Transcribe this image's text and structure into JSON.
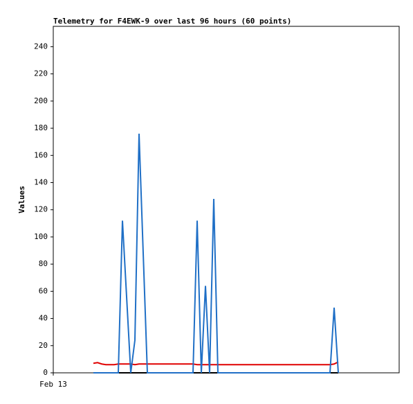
{
  "chart_data": {
    "type": "line",
    "title": "Telemetry for F4EWK-9 over last 96 hours (60 points)",
    "y_label": "Values",
    "x": [
      11.6,
      12.8,
      14,
      15.2,
      16.4,
      17.6,
      18.8,
      20,
      21.2,
      22.4,
      23.6,
      24.8,
      26,
      27.2,
      28.4,
      29.6,
      30.8,
      32,
      33.2,
      34.4,
      35.6,
      36.8,
      38,
      39.2,
      40.4,
      41.6,
      42.8,
      44,
      45.2,
      46.4,
      47.6,
      48.8,
      50,
      51.2,
      52.4,
      53.6,
      54.8,
      56,
      57.2,
      58.4,
      59.6,
      60.8,
      62,
      63.2,
      64.4,
      65.6,
      66.8,
      68,
      69.2,
      70.4,
      71.6,
      72.8,
      74,
      75.2,
      76.4,
      77.6,
      78.8,
      80,
      81.2,
      82.4
    ],
    "xlim": [
      0,
      100
    ],
    "xticks": [
      {
        "value": 0,
        "label": "Feb 13"
      }
    ],
    "ylim": [
      0,
      255
    ],
    "yticks": [
      0,
      20,
      40,
      60,
      80,
      100,
      120,
      140,
      160,
      180,
      200,
      220,
      240
    ],
    "series": [
      {
        "color": "#000000",
        "values": [
          0,
          0,
          0,
          0,
          0,
          0,
          0,
          0,
          0,
          0,
          0,
          0,
          0,
          0,
          0,
          0,
          0,
          0,
          0,
          0,
          0,
          0,
          0,
          0,
          0,
          0,
          0,
          0,
          0,
          0,
          0,
          0,
          0,
          0,
          0,
          0,
          0,
          0,
          0,
          0,
          0,
          0,
          0,
          0,
          0,
          0,
          0,
          0,
          0,
          0,
          0,
          0,
          0,
          0,
          0,
          0,
          0,
          0,
          0,
          0
        ]
      },
      {
        "color": "#e00000",
        "values": [
          7,
          7.5,
          6.5,
          6,
          6,
          6,
          6.5,
          6.5,
          6.5,
          6.5,
          6,
          6.5,
          6.5,
          6.5,
          6.5,
          6.5,
          6.5,
          6.5,
          6.5,
          6.5,
          6.5,
          6.5,
          6.5,
          6.5,
          6.5,
          6,
          6,
          6,
          6,
          6,
          6,
          6,
          6,
          6,
          6,
          6,
          6,
          6,
          6,
          6,
          6,
          6,
          6,
          6,
          6,
          6,
          6,
          6,
          6,
          6,
          6,
          6,
          6,
          6,
          6,
          6,
          6,
          6,
          6.5,
          8
        ]
      },
      {
        "color": "#1f6fc6",
        "values": [
          0,
          0,
          0,
          0,
          0,
          0,
          0,
          112,
          56,
          0,
          24,
          176,
          88,
          0,
          0,
          0,
          0,
          0,
          0,
          0,
          0,
          0,
          0,
          0,
          0,
          112,
          0,
          64,
          0,
          128,
          0,
          0,
          0,
          0,
          0,
          0,
          0,
          0,
          0,
          0,
          0,
          0,
          0,
          0,
          0,
          0,
          0,
          0,
          0,
          0,
          0,
          0,
          0,
          0,
          0,
          0,
          0,
          0,
          48,
          0
        ]
      }
    ]
  }
}
